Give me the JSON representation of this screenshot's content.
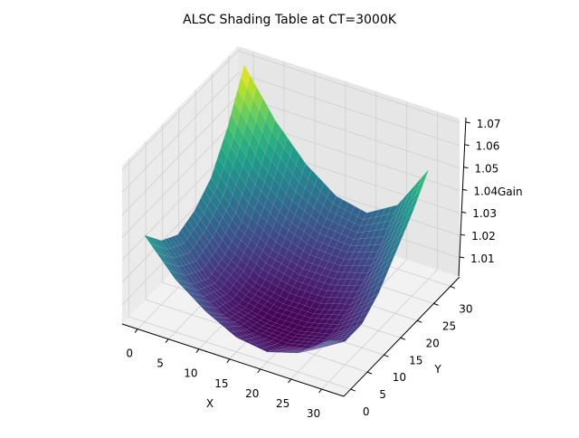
{
  "chart_data": {
    "type": "surface",
    "title": "ALSC Shading Table at CT=3000K",
    "xlabel": "X",
    "ylabel": "Y",
    "zlabel": "Gain",
    "colormap": "viridis",
    "grid": true,
    "xlim": [
      0,
      30
    ],
    "ylim": [
      0,
      30
    ],
    "zlim": [
      1.0,
      1.07
    ],
    "xticks": [
      "0",
      "5",
      "10",
      "15",
      "20",
      "25",
      "30"
    ],
    "yticks": [
      "0",
      "5",
      "10",
      "15",
      "20",
      "25",
      "30"
    ],
    "zticks": [
      "1.01",
      "1.02",
      "1.03",
      "1.04",
      "1.05",
      "1.06",
      "1.07"
    ],
    "x": [
      0,
      5,
      10,
      15,
      20,
      25,
      30
    ],
    "y": [
      0,
      5,
      10,
      15,
      20,
      25,
      30
    ],
    "z": [
      [
        1.04,
        1.025,
        1.015,
        1.008,
        1.006,
        1.01,
        1.02
      ],
      [
        1.03,
        1.015,
        1.006,
        1.002,
        1.001,
        1.004,
        1.012
      ],
      [
        1.025,
        1.01,
        1.003,
        1.0,
        1.0,
        1.003,
        1.012
      ],
      [
        1.028,
        1.013,
        1.005,
        1.002,
        1.002,
        1.006,
        1.018
      ],
      [
        1.035,
        1.02,
        1.012,
        1.008,
        1.008,
        1.012,
        1.028
      ],
      [
        1.05,
        1.033,
        1.022,
        1.016,
        1.015,
        1.02,
        1.038
      ],
      [
        1.07,
        1.05,
        1.035,
        1.025,
        1.022,
        1.03,
        1.05
      ]
    ]
  }
}
